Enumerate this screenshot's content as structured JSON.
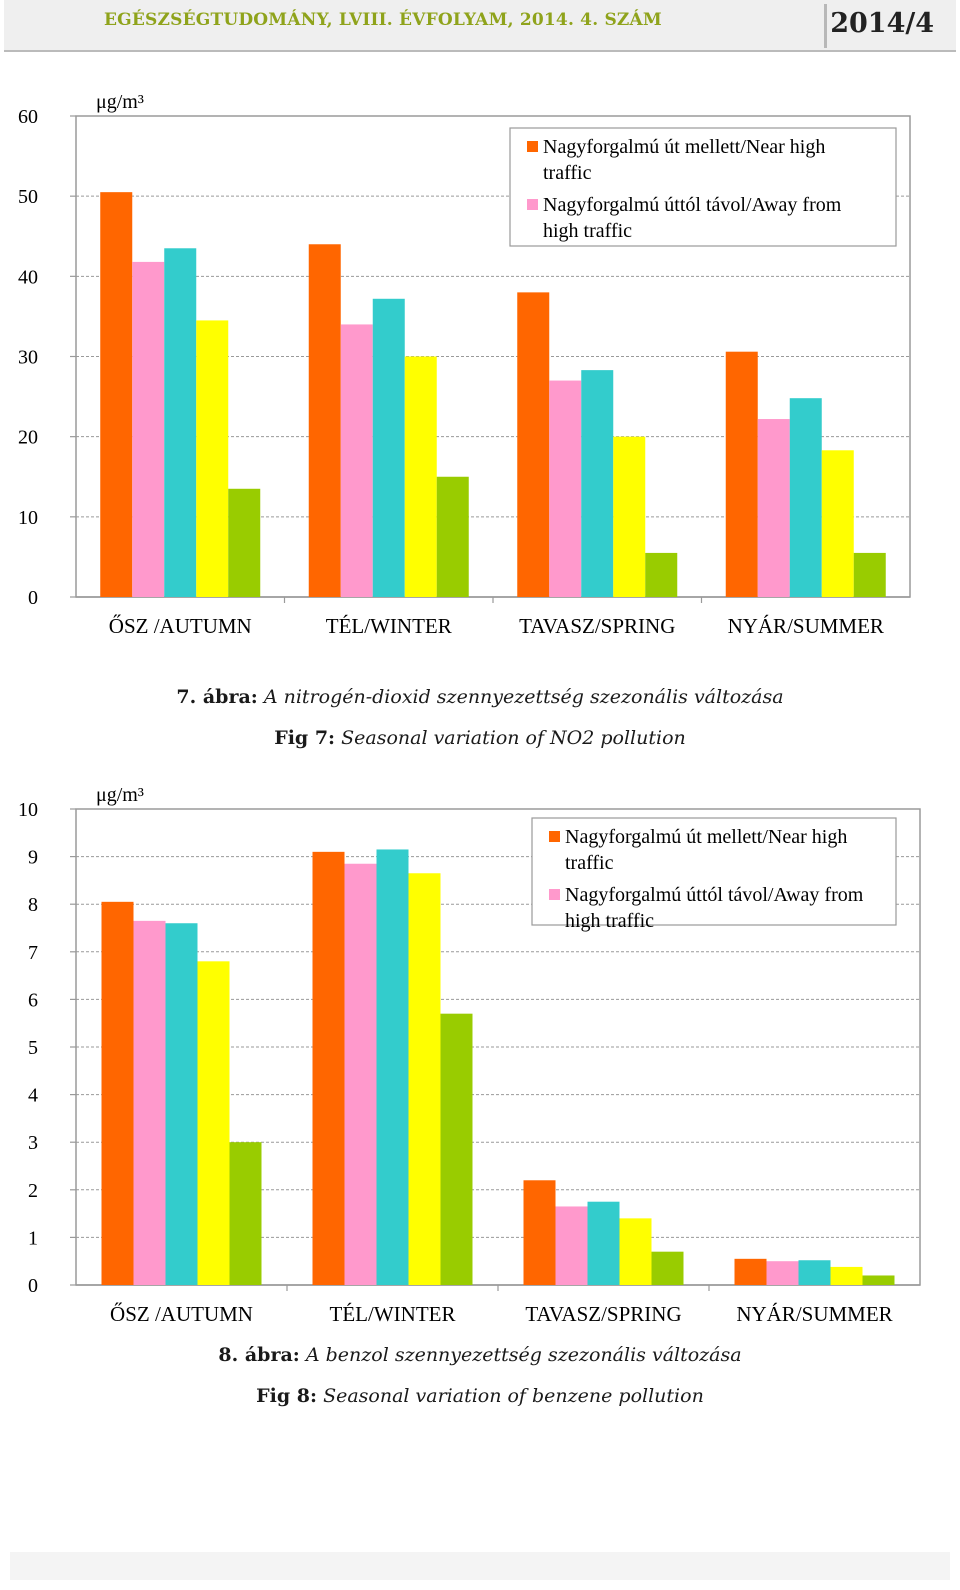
{
  "header": {
    "journal": "EGÉSZSÉGTUDOMÁNY, LVIII. ÉVFOLYAM, 2014. 4. SZÁM",
    "issue": "2014/4"
  },
  "colors": {
    "series": [
      "#ff6600",
      "#ff99cc",
      "#33cccc",
      "#ffff00",
      "#99cc00"
    ],
    "header_text": "#8fa31b"
  },
  "chart_data": [
    {
      "type": "bar",
      "unit_label": "μg/m³",
      "categories": [
        "ŐSZ /AUTUMN",
        "TÉL/WINTER",
        "TAVASZ/SPRING",
        "NYÁR/SUMMER"
      ],
      "ylim": [
        0,
        60
      ],
      "yticks": [
        0,
        10,
        20,
        30,
        40,
        50,
        60
      ],
      "grid": true,
      "legend_position": "top-right",
      "series": [
        {
          "name": "Nagyforgalmú út mellett/Near high traffic",
          "values": [
            50.5,
            44,
            38,
            30.6
          ]
        },
        {
          "name": "Nagyforgalmú úttól távol/Away from high traffic",
          "values": [
            41.8,
            34,
            27,
            22.2
          ]
        },
        {
          "values": [
            43.5,
            37.2,
            28.3,
            24.8
          ]
        },
        {
          "values": [
            34.5,
            30,
            20,
            18.3
          ]
        },
        {
          "values": [
            13.5,
            15,
            5.5,
            5.5
          ]
        }
      ]
    },
    {
      "type": "bar",
      "unit_label": "μg/m³",
      "categories": [
        "ŐSZ /AUTUMN",
        "TÉL/WINTER",
        "TAVASZ/SPRING",
        "NYÁR/SUMMER"
      ],
      "ylim": [
        0,
        10
      ],
      "yticks": [
        0,
        1,
        2,
        3,
        4,
        5,
        6,
        7,
        8,
        9,
        10
      ],
      "grid": true,
      "legend_position": "top-right",
      "series": [
        {
          "name": "Nagyforgalmú út mellett/Near high traffic",
          "values": [
            8.05,
            9.1,
            2.2,
            0.55
          ]
        },
        {
          "name": "Nagyforgalmú úttól távol/Away from high traffic",
          "values": [
            7.65,
            8.85,
            1.65,
            0.5
          ]
        },
        {
          "values": [
            7.6,
            9.15,
            1.75,
            0.52
          ]
        },
        {
          "values": [
            6.8,
            8.65,
            1.4,
            0.38
          ]
        },
        {
          "values": [
            3.0,
            5.7,
            0.7,
            0.2
          ]
        }
      ]
    }
  ],
  "captions": {
    "fig7_hu_label": "7. ábra:",
    "fig7_hu_text": "A nitrogén-dioxid szennyezettség szezonális változása",
    "fig7_en_label": "Fig 7:",
    "fig7_en_text": "Seasonal variation of NO2 pollution",
    "fig8_hu_label": "8. ábra:",
    "fig8_hu_text": "A benzol szennyezettség szezonális változása",
    "fig8_en_label": "Fig 8:",
    "fig8_en_text": "Seasonal variation of benzene pollution"
  }
}
